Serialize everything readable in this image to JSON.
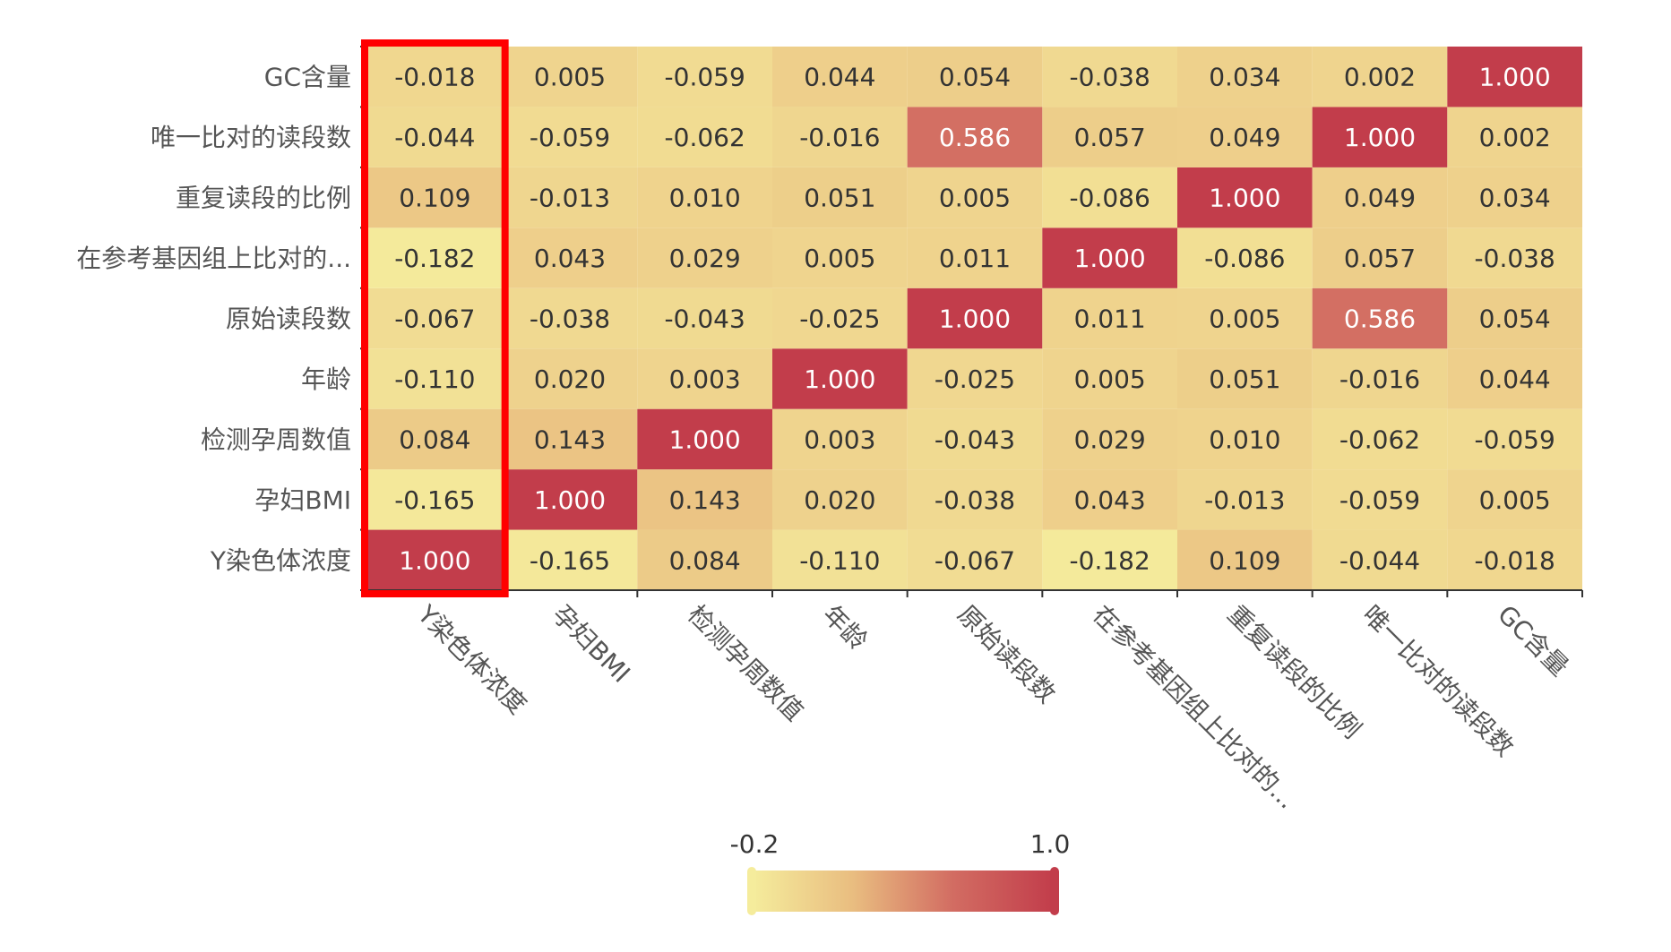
{
  "chart_data": {
    "type": "heatmap",
    "x_categories": [
      "Y染色体浓度",
      "孕妇BMI",
      "检测孕周数值",
      "年龄",
      "原始读段数",
      "在参考基因组上比对的...",
      "重复读段的比例",
      "唯一比对的读段数",
      "GC含量"
    ],
    "y_categories": [
      "Y染色体浓度",
      "孕妇BMI",
      "检测孕周数值",
      "年龄",
      "原始读段数",
      "在参考基因组上比对的...",
      "重复读段的比例",
      "唯一比对的读段数",
      "GC含量"
    ],
    "values": [
      [
        1.0,
        -0.165,
        0.084,
        -0.11,
        -0.067,
        -0.182,
        0.109,
        -0.044,
        -0.018
      ],
      [
        -0.165,
        1.0,
        0.143,
        0.02,
        -0.038,
        0.043,
        -0.013,
        -0.059,
        0.005
      ],
      [
        0.084,
        0.143,
        1.0,
        0.003,
        -0.043,
        0.029,
        0.01,
        -0.062,
        -0.059
      ],
      [
        -0.11,
        0.02,
        0.003,
        1.0,
        -0.025,
        0.005,
        0.051,
        -0.016,
        0.044
      ],
      [
        -0.067,
        -0.038,
        -0.043,
        -0.025,
        1.0,
        0.011,
        0.005,
        0.586,
        0.054
      ],
      [
        -0.182,
        0.043,
        0.029,
        0.005,
        0.011,
        1.0,
        -0.086,
        0.057,
        -0.038
      ],
      [
        0.109,
        -0.013,
        0.01,
        0.051,
        0.005,
        -0.086,
        1.0,
        0.049,
        0.034
      ],
      [
        -0.044,
        -0.059,
        -0.062,
        -0.016,
        0.586,
        0.057,
        0.049,
        1.0,
        0.002
      ],
      [
        -0.018,
        0.005,
        -0.059,
        0.044,
        0.054,
        -0.038,
        0.034,
        0.002,
        1.0
      ]
    ],
    "value_format_decimals": 3,
    "visual_map": {
      "min": -0.2,
      "max": 1.0,
      "min_label": "-0.2",
      "max_label": "1.0",
      "colors": [
        "#f5ec9c",
        "#e9bd80",
        "#d26c62",
        "#c23d4b"
      ]
    },
    "highlight": {
      "column_index": 0,
      "color": "#ff0000"
    },
    "text_colors": {
      "light": "#ffffff",
      "dark": "#333333",
      "axis": "#555555"
    },
    "axis_color": "#333333",
    "legend_placement": "bottom-center"
  }
}
